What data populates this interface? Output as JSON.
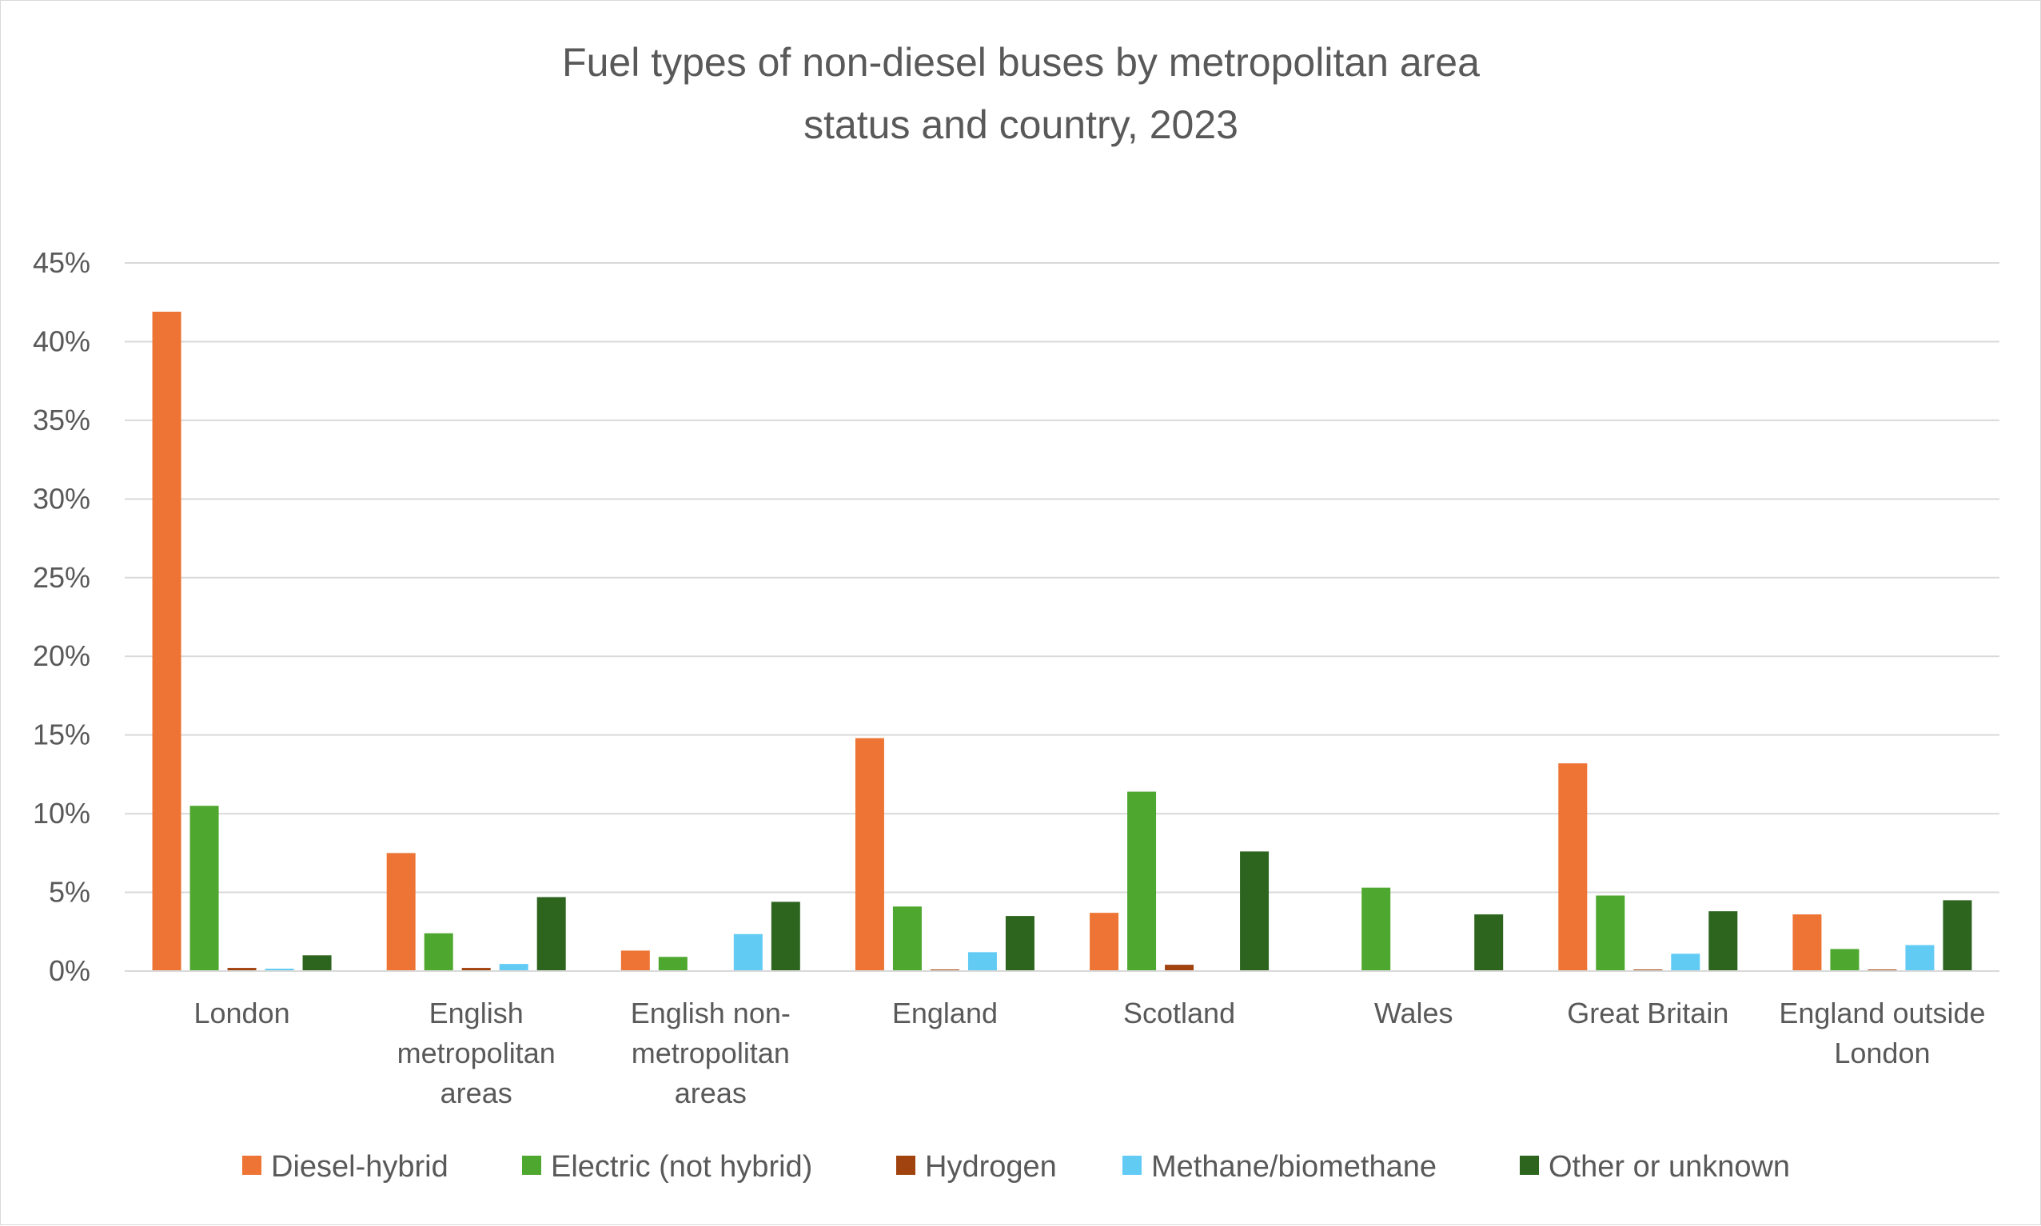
{
  "chart_data": {
    "type": "bar",
    "title_lines": [
      "Fuel types of non-diesel buses by metropolitan area",
      "status and country, 2023"
    ],
    "categories": [
      [
        "London"
      ],
      [
        "English",
        "metropolitan",
        "areas"
      ],
      [
        "English non-",
        "metropolitan",
        "areas"
      ],
      [
        "England"
      ],
      [
        "Scotland"
      ],
      [
        "Wales"
      ],
      [
        "Great Britain"
      ],
      [
        "England outside",
        "London"
      ]
    ],
    "yticks": [
      "0%",
      "5%",
      "10%",
      "15%",
      "20%",
      "25%",
      "30%",
      "35%",
      "40%",
      "45%"
    ],
    "ylim": [
      0,
      45
    ],
    "grid": true,
    "legend_position": "bottom",
    "series": [
      {
        "name": "Diesel-hybrid",
        "color": "#ED7434",
        "values": [
          41.9,
          7.5,
          1.3,
          14.8,
          3.7,
          0,
          13.2,
          3.6
        ]
      },
      {
        "name": "Electric (not hybrid)",
        "color": "#4EA72E",
        "values": [
          10.5,
          2.4,
          0.9,
          4.1,
          11.4,
          5.3,
          4.8,
          1.4
        ]
      },
      {
        "name": "Hydrogen",
        "color": "#A0430F",
        "values": [
          0.2,
          0.2,
          0,
          0.1,
          0.4,
          0,
          0.1,
          0.1
        ]
      },
      {
        "name": "Methane/biomethane",
        "color": "#61CBF4",
        "values": [
          0.15,
          0.45,
          2.35,
          1.2,
          0,
          0,
          1.1,
          1.65
        ]
      },
      {
        "name": "Other or unknown",
        "color": "#2D651F",
        "values": [
          1.0,
          4.7,
          4.4,
          3.5,
          7.6,
          3.6,
          3.8,
          4.5
        ]
      }
    ]
  }
}
